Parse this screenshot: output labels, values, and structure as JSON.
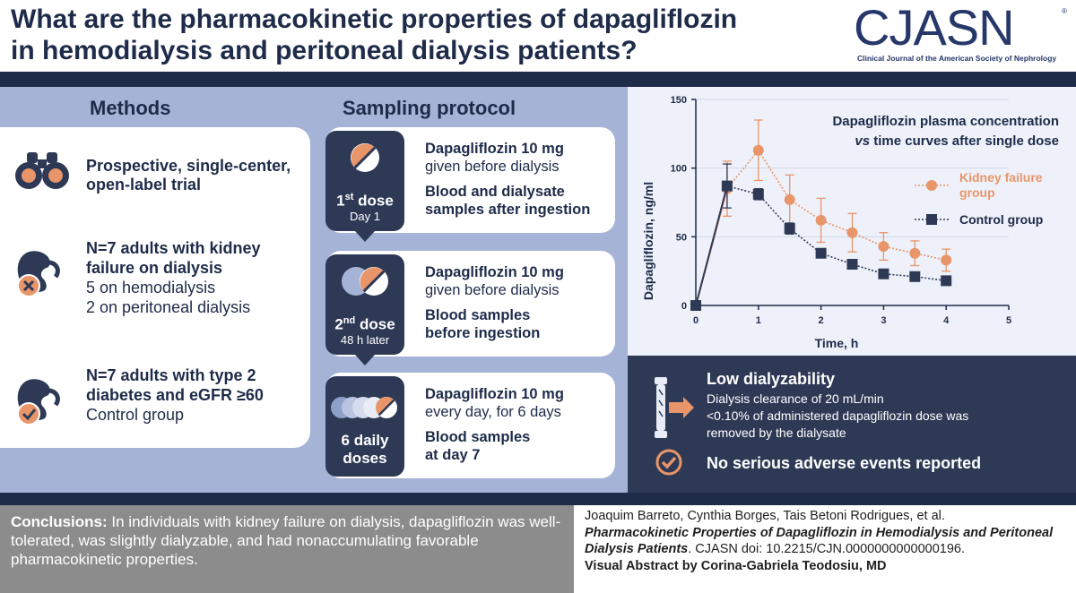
{
  "header": {
    "title_line1": "What are the pharmacokinetic properties of dapagliflozin",
    "title_line2": "in hemodialysis and peritoneal dialysis patients?",
    "logo_text": "CJASN",
    "logo_sub": "Clinical Journal of the American Society of Nephrology",
    "logo_registered": "®"
  },
  "methods": {
    "heading": "Methods",
    "items": [
      {
        "bold": "Prospective, single-center, open-label trial",
        "line1": "Prospective, single-center,",
        "line2": "open-label trial"
      },
      {
        "line1": "N=7 adults with kidney",
        "line2": "failure on dialysis",
        "line3": "5 on hemodialysis",
        "line4": "2 on peritoneal dialysis"
      },
      {
        "line1": "N=7 adults with type 2",
        "line2": "diabetes and eGFR ≥60",
        "line3": "Control group"
      }
    ]
  },
  "sampling": {
    "heading": "Sampling protocol",
    "steps": [
      {
        "dose_num": "1",
        "dose_sup": "st",
        "dose_word": " dose",
        "dose_sub": "Day 1",
        "drug": "Dapagliflozin 10 mg",
        "drug_note": "given before dialysis",
        "sample1": "Blood and dialysate",
        "sample2": "samples after ingestion"
      },
      {
        "dose_num": "2",
        "dose_sup": "nd",
        "dose_word": " dose",
        "dose_sub": "48 h later",
        "drug": "Dapagliflozin 10 mg",
        "drug_note": "given before dialysis",
        "sample1": "Blood samples",
        "sample2": "before ingestion"
      },
      {
        "dose_line1": "6 daily",
        "dose_line2": "doses",
        "drug": "Dapagliflozin 10 mg",
        "drug_note": "every day, for 6 days",
        "sample1": "Blood samples",
        "sample2": "at day 7"
      }
    ]
  },
  "chart_data": {
    "type": "line",
    "title_line1": "Dapagliflozin plasma concentration",
    "title_line2_italic": "vs",
    "title_line2_rest": " time curves after single dose",
    "xlabel": "Time, h",
    "ylabel": "Dapagliflozin, ng/ml",
    "xlim": [
      0,
      5
    ],
    "ylim": [
      0,
      150
    ],
    "x_ticks": [
      "0",
      "1",
      "2",
      "3",
      "4",
      "5"
    ],
    "y_ticks": [
      "0",
      "50",
      "100",
      "150"
    ],
    "series": [
      {
        "name_line1": "Kidney failure",
        "name_line2": "group",
        "color": "#e8956a",
        "marker": "circle",
        "x": [
          0,
          0.5,
          1,
          1.5,
          2,
          2.5,
          3,
          3.5,
          4
        ],
        "y": [
          0,
          85,
          113,
          77,
          62,
          53,
          43,
          38,
          33
        ],
        "err": [
          0,
          20,
          22,
          18,
          16,
          14,
          10,
          9,
          8
        ]
      },
      {
        "name_line1": "Control group",
        "name_line2": "",
        "color": "#2e3a55",
        "marker": "square",
        "x": [
          0,
          0.5,
          1,
          1.5,
          2,
          2.5,
          3,
          3.5,
          4
        ],
        "y": [
          0,
          87,
          81,
          56,
          38,
          30,
          23,
          21,
          18
        ],
        "err": [
          0,
          16,
          4,
          4,
          2,
          1,
          1,
          1,
          1
        ]
      }
    ]
  },
  "results": {
    "dialyzability_title": "Low dialyzability",
    "dialyzability_line1": "Dialysis clearance of 20 mL/min",
    "dialyzability_line2": "<0.10% of administered dapagliflozin dose was",
    "dialyzability_line3": "removed by the dialysate",
    "safety": "No serious adverse events reported"
  },
  "conclusions": {
    "label": "Conclusions:",
    "text": " In individuals with kidney failure on dialysis, dapagliflozin was well-tolerated, was slightly dialyzable, and had nonaccumulating favorable pharmacokinetic properties."
  },
  "citation": {
    "authors": "Joaquim Barreto, Cynthia Borges, Tais Betoni Rodrigues, et al.",
    "article_title": "Pharmacokinetic Properties of Dapagliflozin in Hemodialysis and Peritoneal Dialysis Patients",
    "journal_doi": ". CJASN doi: 10.2215/CJN.0000000000000196.",
    "visual_credit": "Visual Abstract by Corina-Gabriela Teodosiu, MD"
  },
  "colors": {
    "navy": "#1e2b49",
    "slate": "#2e3a55",
    "periwinkle": "#a5b3d6",
    "orange": "#e8956a",
    "gray": "#8c8c8c"
  }
}
